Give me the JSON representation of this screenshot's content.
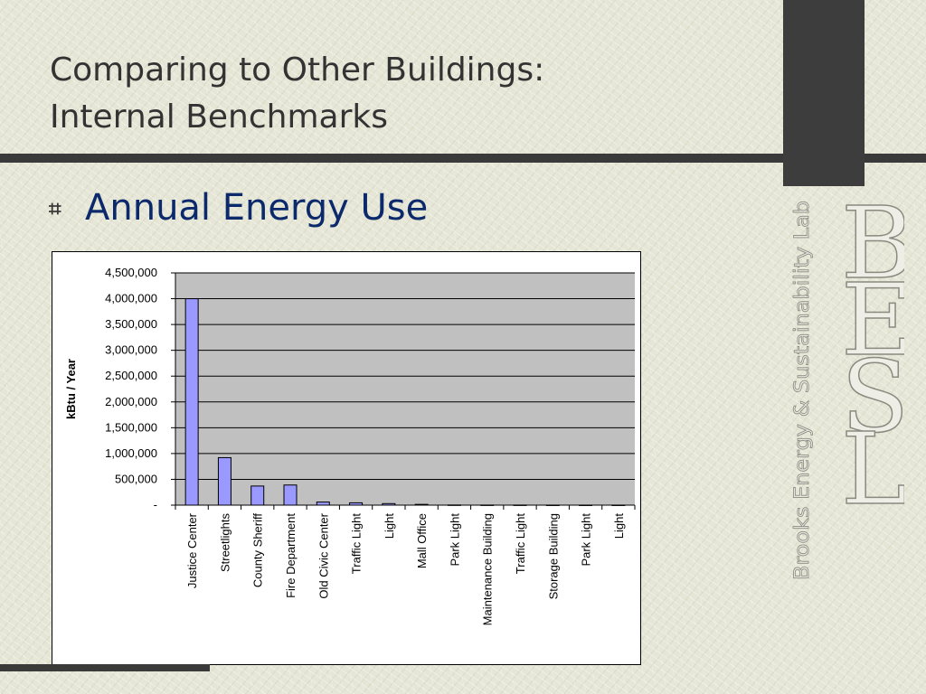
{
  "slide": {
    "title_line1": "Comparing to Other Buildings:",
    "title_line2": "Internal Benchmarks",
    "bullet": "Annual Energy Use",
    "bullet_icon": "hash-bullet-icon"
  },
  "logo": {
    "letters": "BESL",
    "tagline": "Brooks Energy & Sustainability Lab"
  },
  "colors": {
    "bar_fill": "#9999ff",
    "plot_bg": "#c0c0c0",
    "accent_bar": "#3a3a3a",
    "bullet_text": "#0c2a6b"
  },
  "chart_data": {
    "type": "bar",
    "ylabel": "kBtu / Year",
    "xlabel": "",
    "ylim": [
      0,
      4500000
    ],
    "yticks": [
      0,
      500000,
      1000000,
      1500000,
      2000000,
      2500000,
      3000000,
      3500000,
      4000000,
      4500000
    ],
    "ytick_labels": [
      "-",
      "500,000",
      "1,000,000",
      "1,500,000",
      "2,000,000",
      "2,500,000",
      "3,000,000",
      "3,500,000",
      "4,000,000",
      "4,500,000"
    ],
    "grid": true,
    "categories": [
      "Justice Center",
      "Streetlights",
      "County Sheriff",
      "Fire Department",
      "Old Civic Center",
      "Traffic Light",
      "Light",
      "Mall Office",
      "Park Light",
      "Maintenance Building",
      "Traffic Light",
      "Storage Building",
      "Park Light",
      "Light"
    ],
    "values": [
      4000000,
      920000,
      370000,
      390000,
      60000,
      45000,
      30000,
      15000,
      3000,
      2000,
      2000,
      1000,
      1000,
      1000
    ]
  }
}
